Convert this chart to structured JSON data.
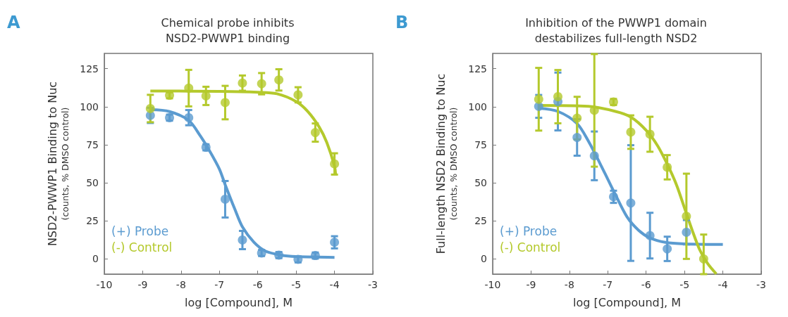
{
  "chart_data": [
    {
      "type": "scatter",
      "title": "Chemical probe inhibits\nNSD2-PWWP1 binding",
      "xlabel": "log [Compound], M",
      "ylabel": "NSD2-PWWP1 Binding to Nuc\n(counts, % DMSO control)",
      "annotations": [
        "A"
      ],
      "xlim": [
        -10,
        -3
      ],
      "xticks": [
        -10,
        -9,
        -8,
        -7,
        -6,
        -5,
        -4,
        -3
      ],
      "ylim": [
        -10,
        135
      ],
      "yticks": [
        0,
        25,
        50,
        75,
        100,
        125
      ],
      "grid": false,
      "legend": "bottom left",
      "marker": "circle",
      "x": [
        -8.8,
        -8.3,
        -7.8,
        -7.35,
        -6.85,
        -6.4,
        -5.9,
        -5.45,
        -4.95,
        -4.5,
        -4.0
      ],
      "series": [
        {
          "name": "(+) Probe",
          "color": "#5b9bd0",
          "values": [
            94.3,
            92.8,
            92.8,
            73.3,
            39.2,
            12.4,
            3.9,
            2.5,
            -0.3,
            2.2,
            10.9
          ],
          "errors": [
            5,
            2,
            5,
            2,
            12,
            6,
            2,
            2,
            2,
            2,
            4
          ]
        },
        {
          "name": "(-) Control",
          "color": "#b4c92c",
          "values": [
            98.8,
            107.5,
            112.2,
            107.1,
            102.7,
            115.5,
            115.1,
            117.6,
            107.8,
            83,
            62.4
          ],
          "errors": [
            9,
            2,
            12,
            6,
            11,
            5,
            7,
            7,
            5,
            6,
            7
          ]
        },
        {
          "type": "line",
          "marker": "none",
          "color": "#5b9bd0",
          "x": [
            -8.8,
            -8.3,
            -7.8,
            -7.5,
            -7.25,
            -7,
            -6.85,
            -6.6,
            -6.4,
            -6.1,
            -5.8,
            -5.4,
            -5,
            -4
          ],
          "values": [
            98,
            96.8,
            91,
            80.9,
            70.7,
            59,
            48.8,
            32.8,
            21,
            10.9,
            5.1,
            2.5,
            1.5,
            1
          ]
        },
        {
          "type": "line",
          "marker": "none",
          "color": "#b4c92c",
          "x": [
            -8.8,
            -7,
            -6,
            -5.5,
            -5,
            -4.7,
            -4.4,
            -4.2,
            -4,
            -3.97
          ],
          "values": [
            110.3,
            110.1,
            109.5,
            108.5,
            103.4,
            97,
            86.7,
            76.5,
            61,
            55
          ]
        }
      ]
    },
    {
      "type": "scatter",
      "title": "Inhibition of the PWWP1 domain\ndestabilizes full-length NSD2",
      "xlabel": "log [Compound], M",
      "ylabel": "Full-length NSD2 Binding to Nuc\n(counts, % DMSO control)",
      "annotations": [
        "B"
      ],
      "xlim": [
        -10,
        -3
      ],
      "xticks": [
        -10,
        -9,
        -8,
        -7,
        -6,
        -5,
        -4,
        -3
      ],
      "ylim": [
        -10,
        135
      ],
      "yticks": [
        0,
        25,
        50,
        75,
        100,
        125
      ],
      "grid": false,
      "legend": "bottom left",
      "marker": "circle",
      "x": [
        -8.8,
        -8.3,
        -7.8,
        -7.35,
        -6.85,
        -6.4,
        -5.9,
        -5.45,
        -4.95,
        -4.5
      ],
      "series": [
        {
          "name": "(+) Probe",
          "color": "#5b9bd0",
          "values": [
            100.2,
            103.4,
            79.8,
            67.7,
            40.8,
            36.7,
            15.3,
            6.6,
            17.5,
            null
          ],
          "errors": [
            7.5,
            19,
            12,
            16,
            4,
            38,
            15,
            8,
            8,
            null
          ]
        },
        {
          "name": "(-) Control",
          "color": "#b4c92c",
          "values": [
            104.9,
            106.6,
            92.5,
            97.6,
            103.1,
            83.3,
            81.9,
            60.2,
            28,
            0
          ],
          "errors": [
            20.6,
            17.5,
            14,
            37,
            2,
            11,
            11.5,
            8,
            28,
            [
              -10,
              16
            ]
          ]
        },
        {
          "type": "line",
          "marker": "none",
          "color": "#5b9bd0",
          "x": [
            -8.8,
            -8.3,
            -7.8,
            -7.5,
            -7.2,
            -7,
            -6.8,
            -6.5,
            -6.2,
            -5.9,
            -5.5,
            -5,
            -4
          ],
          "values": [
            99,
            96.9,
            88.9,
            77.2,
            62.6,
            52.4,
            42.2,
            27.7,
            18.9,
            13.8,
            10.9,
            9.9,
            9.5
          ]
        },
        {
          "type": "line",
          "marker": "none",
          "color": "#b4c92c",
          "x": [
            -8.8,
            -7.5,
            -6.8,
            -6.4,
            -6,
            -5.7,
            -5.4,
            -5.2,
            -5,
            -4.8,
            -4.6,
            -4.4,
            -4.17
          ],
          "values": [
            100.8,
            100.2,
            96.9,
            93.2,
            84.5,
            74.3,
            59.7,
            48.1,
            33.5,
            18.9,
            5.8,
            -2.9,
            -9.9
          ]
        }
      ]
    }
  ]
}
